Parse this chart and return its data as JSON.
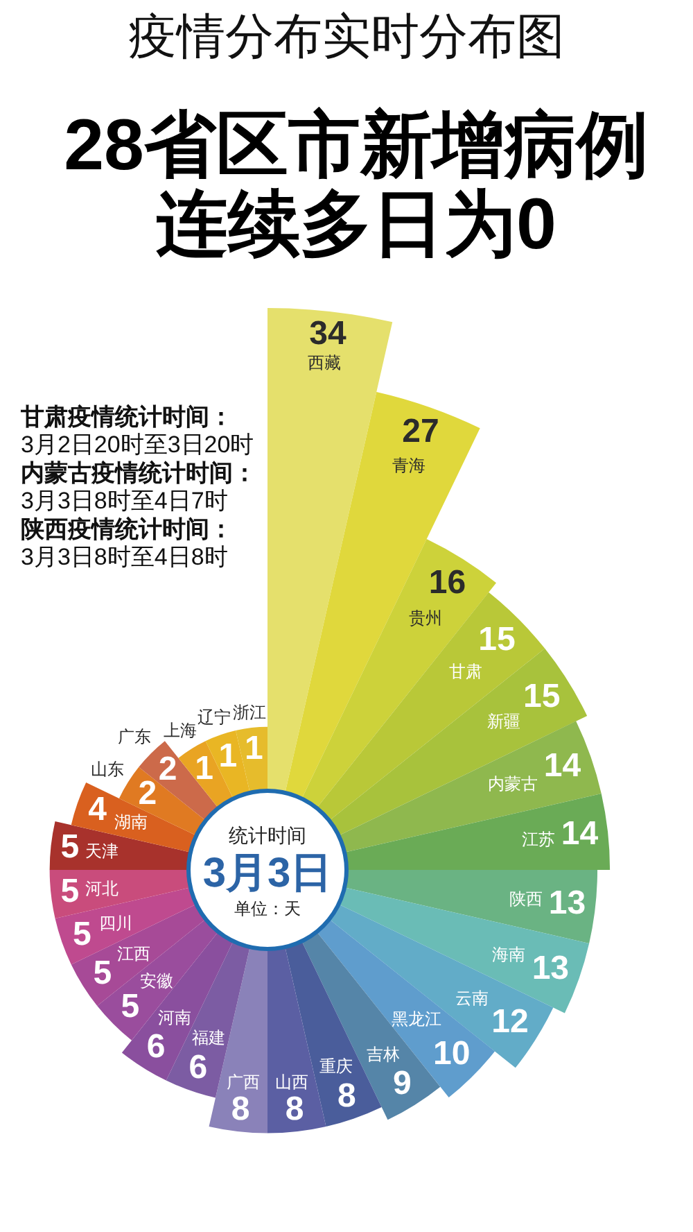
{
  "chart_data": {
    "type": "other",
    "title": "疫情分布实时分布图",
    "subtitle": "28省区市新增病例连续多日为0",
    "categories": [
      "西藏",
      "青海",
      "贵州",
      "甘肃",
      "新疆",
      "内蒙古",
      "江苏",
      "陕西",
      "海南",
      "云南",
      "黑龙江",
      "吉林",
      "重庆",
      "山西",
      "广西",
      "福建",
      "河南",
      "安徽",
      "江西",
      "四川",
      "河北",
      "天津",
      "湖南",
      "山东",
      "广东",
      "上海",
      "辽宁",
      "浙江"
    ],
    "values": [
      34,
      27,
      16,
      15,
      15,
      14,
      14,
      13,
      13,
      12,
      10,
      9,
      8,
      8,
      8,
      6,
      6,
      5,
      5,
      5,
      5,
      5,
      4,
      2,
      2,
      1,
      1,
      1
    ],
    "colors": [
      "#e5e06c",
      "#e0d83c",
      "#cdd23a",
      "#b9c838",
      "#a8c23c",
      "#8fb84e",
      "#6aab56",
      "#6ab383",
      "#6abcb6",
      "#62acc8",
      "#5f9dcd",
      "#5585a8",
      "#4a5d9b",
      "#5b5fa3",
      "#8a82b9",
      "#7c5ca3",
      "#8a4f9e",
      "#9a4d9d",
      "#a74a97",
      "#bf4a8f",
      "#c94c7c",
      "#a8322c",
      "#d9601f",
      "#e07a22",
      "#cc6a4a",
      "#e9a423",
      "#e9b624",
      "#e6bc2c"
    ],
    "data_labels": true,
    "annotations": [
      "甘肃疫情统计时间：",
      "3月2日20时至3日20时",
      "内蒙古疫情统计时间：",
      "3月3日8时至4日7时",
      "陕西疫情统计时间：",
      "3月3日8时至4日8时",
      "统计时间",
      "3月3日",
      "单位：天"
    ]
  }
}
